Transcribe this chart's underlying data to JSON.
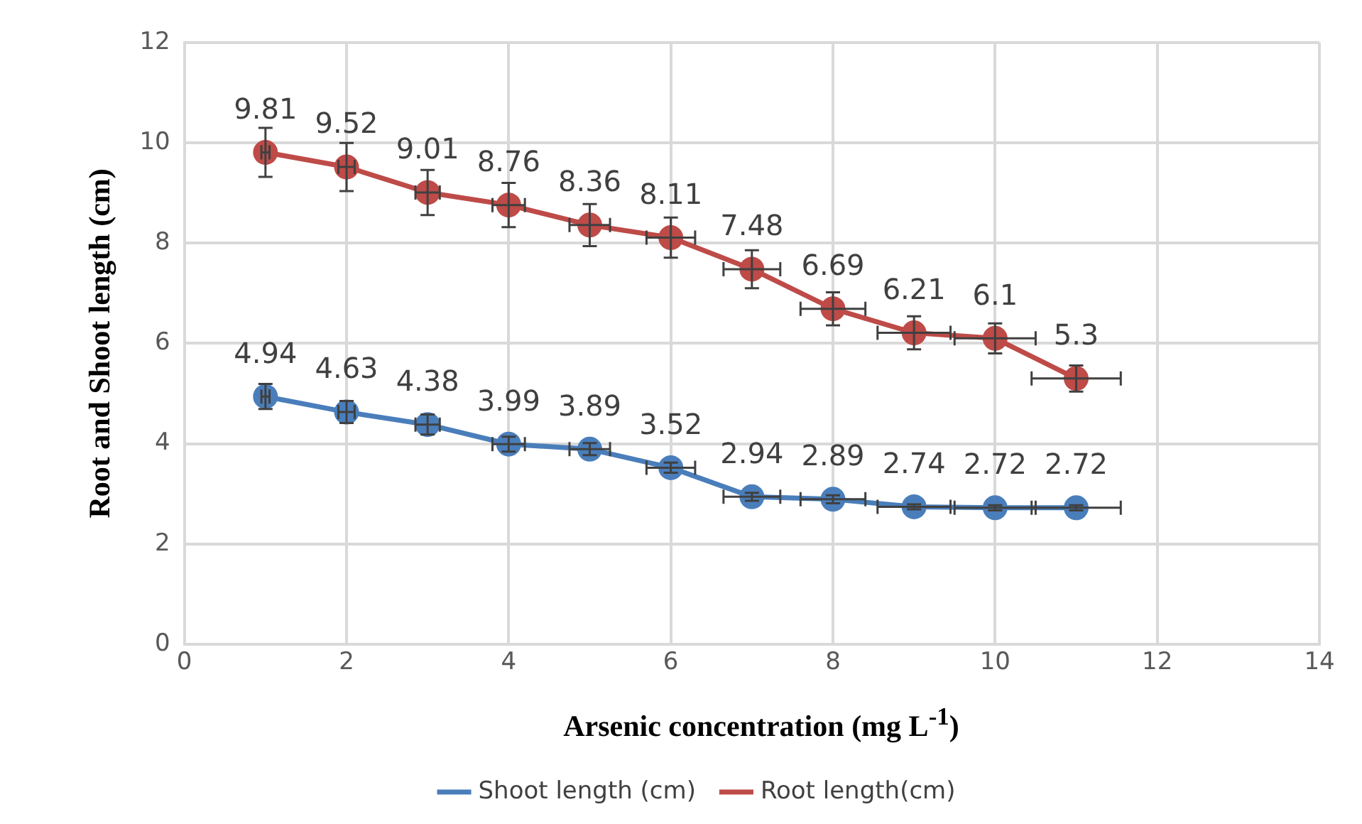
{
  "chart_data": {
    "type": "line",
    "xlabel": "Arsenic concentration (mg L$^{-1}$)",
    "ylabel": "Root and Shoot length (cm)",
    "x": [
      1,
      2,
      3,
      4,
      5,
      6,
      7,
      8,
      9,
      10,
      11
    ],
    "series": [
      {
        "name": "Shoot length (cm)",
        "color": "#4a7ebb",
        "values": [
          4.94,
          4.63,
          4.38,
          3.99,
          3.89,
          3.52,
          2.94,
          2.89,
          2.74,
          2.72,
          2.72
        ],
        "errors": [
          0.25,
          0.22,
          0.2,
          0.15,
          0.12,
          0.1,
          0.08,
          0.08,
          0.05,
          0.05,
          0.05
        ],
        "xerrors": [
          0.05,
          0.1,
          0.15,
          0.2,
          0.25,
          0.3,
          0.35,
          0.4,
          0.45,
          0.5,
          0.55
        ]
      },
      {
        "name": "Root length(cm)",
        "color": "#be4b48",
        "values": [
          9.81,
          9.52,
          9.01,
          8.76,
          8.36,
          8.11,
          7.48,
          6.69,
          6.21,
          6.1,
          5.3
        ],
        "errors": [
          0.49,
          0.48,
          0.45,
          0.44,
          0.42,
          0.4,
          0.38,
          0.33,
          0.33,
          0.3,
          0.26
        ],
        "xerrors": [
          0.05,
          0.1,
          0.15,
          0.2,
          0.25,
          0.3,
          0.35,
          0.4,
          0.45,
          0.5,
          0.55
        ]
      }
    ],
    "xlim": [
      0,
      14
    ],
    "xticks": [
      0,
      2,
      4,
      6,
      8,
      10,
      12,
      14
    ],
    "ylim": [
      0,
      12
    ],
    "yticks": [
      0,
      2,
      4,
      6,
      8,
      10,
      12
    ],
    "grid": true,
    "legend": "bottom",
    "marker": "circle",
    "line_style": "solid",
    "data_labels": true
  }
}
